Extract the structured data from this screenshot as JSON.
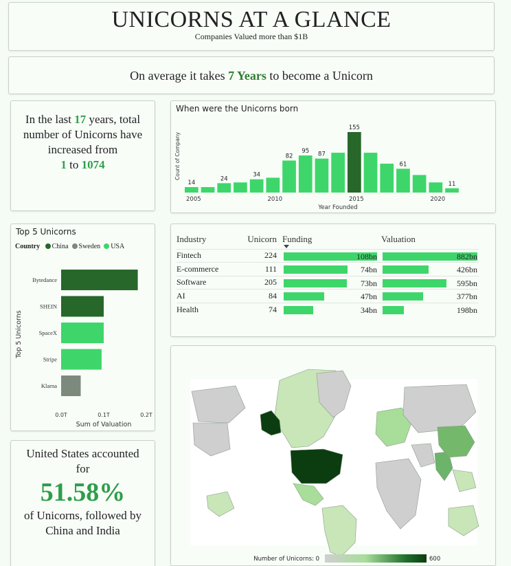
{
  "header": {
    "title": "UNICORNS AT A GLANCE",
    "subtitle": "Companies Valued more than $1B"
  },
  "average": {
    "prefix": "On average it takes",
    "value": "7 Years",
    "suffix": "to become a Unicorn"
  },
  "growth": {
    "l1": "In the last",
    "years": "17",
    "l2": "years, total",
    "l3": "number of Unicorns have",
    "l4": "increased from",
    "from": "1",
    "to_word": "to",
    "to": "1074"
  },
  "born_chart": {
    "title": "When were the Unicorns born",
    "chart_data": {
      "type": "bar",
      "x": [
        2005,
        2006,
        2007,
        2008,
        2009,
        2010,
        2011,
        2012,
        2013,
        2014,
        2015,
        2016,
        2017,
        2018,
        2019,
        2020,
        2021
      ],
      "values": [
        14,
        14,
        24,
        26,
        34,
        38,
        82,
        95,
        87,
        102,
        155,
        102,
        74,
        61,
        45,
        26,
        11
      ],
      "highlight_index": 10,
      "data_labels": {
        "2005": 14,
        "2007": 24,
        "2009": 34,
        "2011": 82,
        "2012": 95,
        "2013": 87,
        "2015": 155,
        "2018": 61,
        "2021": 11
      },
      "x_ticks": [
        "2005",
        "2010",
        "2015",
        "2020"
      ],
      "xlabel": "Year Founded",
      "ylabel": "Count of Company",
      "colors": {
        "bar": "#3ed66a",
        "highlight": "#27672a"
      }
    }
  },
  "top5": {
    "title": "Top 5 Unicorns",
    "legend_title": "Country",
    "legend": [
      {
        "name": "China",
        "color": "#27672a"
      },
      {
        "name": "Sweden",
        "color": "#7c8a7e"
      },
      {
        "name": "USA",
        "color": "#3ed66a"
      }
    ],
    "chart_data": {
      "type": "bar",
      "orientation": "horizontal",
      "categories": [
        "Bytedance",
        "SHEIN",
        "SpaceX",
        "Stripe",
        "Klarna"
      ],
      "values": [
        0.18,
        0.1,
        0.1,
        0.095,
        0.046
      ],
      "countries": [
        "China",
        "China",
        "USA",
        "USA",
        "Sweden"
      ],
      "x_ticks": [
        "0.0T",
        "0.1T",
        "0.2T"
      ],
      "xlim": [
        0,
        0.2
      ],
      "xlabel": "Sum of Valuation",
      "ylabel": "Top 5 Unicorns"
    }
  },
  "industry": {
    "headers": [
      "Industry",
      "Unicorn",
      "Funding",
      "Valuation"
    ],
    "rows": [
      {
        "name": "Fintech",
        "unicorn": "224",
        "funding": 108,
        "funding_label": "108bn",
        "valuation": 882,
        "valuation_label": "882bn"
      },
      {
        "name": "E-commerce",
        "unicorn": "111",
        "funding": 74,
        "funding_label": "74bn",
        "valuation": 426,
        "valuation_label": "426bn"
      },
      {
        "name": "Software",
        "unicorn": "205",
        "funding": 73,
        "funding_label": "73bn",
        "valuation": 595,
        "valuation_label": "595bn"
      },
      {
        "name": "AI",
        "unicorn": "84",
        "funding": 47,
        "funding_label": "47bn",
        "valuation": 377,
        "valuation_label": "377bn"
      },
      {
        "name": "Health",
        "unicorn": "74",
        "funding": 34,
        "funding_label": "34bn",
        "valuation": 198,
        "valuation_label": "198bn"
      }
    ],
    "funding_max": 108,
    "valuation_max": 882,
    "bar_color": "#3ed66a"
  },
  "usa": {
    "l1": "United States accounted",
    "l2": "for",
    "pct": "51.58%",
    "l3": "of Unicorns, followed by",
    "l4": "China and India"
  },
  "map": {
    "legend_label": "Number of Unicorns: 0",
    "legend_max": "600",
    "gradient": [
      "#cfcfcf",
      "#a8dd9a",
      "#1e6e2a",
      "#0b3d10"
    ]
  }
}
